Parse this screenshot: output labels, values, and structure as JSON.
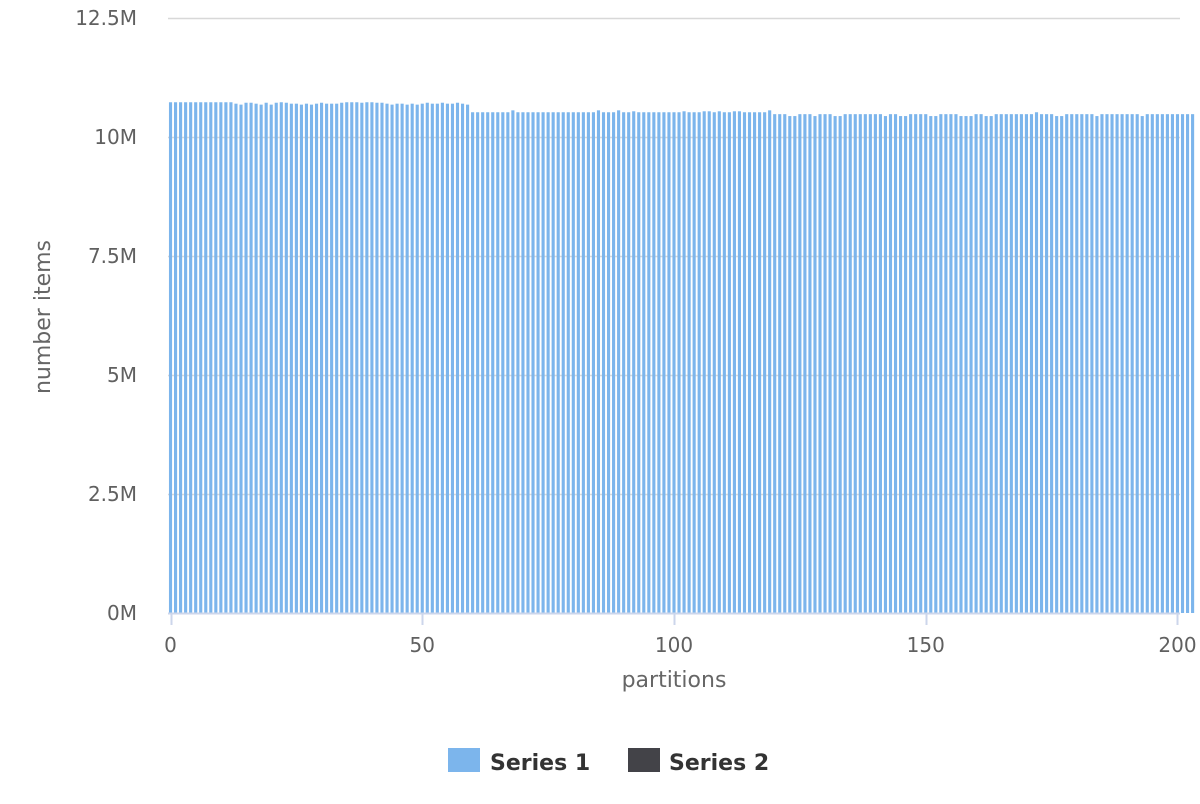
{
  "chart_data": {
    "type": "bar",
    "title": "",
    "xlabel": "partitions",
    "ylabel": "number items",
    "xlim": [
      -0.5,
      200.5
    ],
    "ylim": [
      0,
      12500000
    ],
    "x_ticks": [
      0,
      50,
      100,
      150,
      200
    ],
    "x_tick_labels": [
      "0",
      "50",
      "100",
      "150",
      "200"
    ],
    "y_ticks": [
      0,
      2500000,
      5000000,
      7500000,
      10000000,
      12500000
    ],
    "y_tick_labels": [
      "0M",
      "2.5M",
      "5M",
      "7.5M",
      "10M",
      "12.5M"
    ],
    "grid": "horizontal",
    "legend_position": "bottom-center",
    "series": [
      {
        "name": "Series 1",
        "color": "#7cb5ec",
        "values": [
          10730000,
          10730000,
          10730000,
          10730000,
          10730000,
          10730000,
          10730000,
          10730000,
          10730000,
          10730000,
          10730000,
          10730000,
          10730000,
          10700000,
          10680000,
          10720000,
          10720000,
          10700000,
          10680000,
          10720000,
          10680000,
          10720000,
          10730000,
          10720000,
          10700000,
          10700000,
          10680000,
          10700000,
          10680000,
          10700000,
          10720000,
          10700000,
          10700000,
          10700000,
          10720000,
          10730000,
          10730000,
          10730000,
          10720000,
          10730000,
          10730000,
          10720000,
          10720000,
          10700000,
          10680000,
          10700000,
          10700000,
          10680000,
          10700000,
          10680000,
          10700000,
          10720000,
          10700000,
          10700000,
          10720000,
          10700000,
          10700000,
          10720000,
          10700000,
          10680000,
          10520000,
          10520000,
          10520000,
          10520000,
          10520000,
          10520000,
          10520000,
          10520000,
          10560000,
          10520000,
          10520000,
          10520000,
          10520000,
          10520000,
          10520000,
          10520000,
          10520000,
          10520000,
          10520000,
          10520000,
          10520000,
          10520000,
          10520000,
          10520000,
          10520000,
          10560000,
          10520000,
          10520000,
          10520000,
          10560000,
          10520000,
          10520000,
          10540000,
          10520000,
          10520000,
          10520000,
          10520000,
          10520000,
          10520000,
          10520000,
          10520000,
          10520000,
          10540000,
          10520000,
          10520000,
          10520000,
          10540000,
          10540000,
          10520000,
          10540000,
          10520000,
          10520000,
          10540000,
          10540000,
          10520000,
          10520000,
          10520000,
          10520000,
          10520000,
          10560000,
          10480000,
          10480000,
          10480000,
          10440000,
          10440000,
          10480000,
          10480000,
          10480000,
          10440000,
          10480000,
          10480000,
          10480000,
          10440000,
          10440000,
          10480000,
          10480000,
          10480000,
          10480000,
          10480000,
          10480000,
          10480000,
          10480000,
          10440000,
          10480000,
          10480000,
          10440000,
          10440000,
          10480000,
          10480000,
          10480000,
          10480000,
          10440000,
          10440000,
          10480000,
          10480000,
          10480000,
          10480000,
          10440000,
          10440000,
          10440000,
          10480000,
          10480000,
          10440000,
          10440000,
          10480000,
          10480000,
          10480000,
          10480000,
          10480000,
          10480000,
          10480000,
          10480000,
          10520000,
          10480000,
          10480000,
          10480000,
          10440000,
          10440000,
          10480000,
          10480000,
          10480000,
          10480000,
          10480000,
          10480000,
          10440000,
          10480000,
          10480000,
          10480000,
          10480000,
          10480000,
          10480000,
          10480000,
          10480000,
          10440000,
          10480000,
          10480000,
          10480000,
          10480000,
          10480000,
          10480000,
          10480000,
          10480000,
          10480000,
          10480000
        ]
      },
      {
        "name": "Series 2",
        "color": "#434348",
        "values": []
      }
    ]
  }
}
